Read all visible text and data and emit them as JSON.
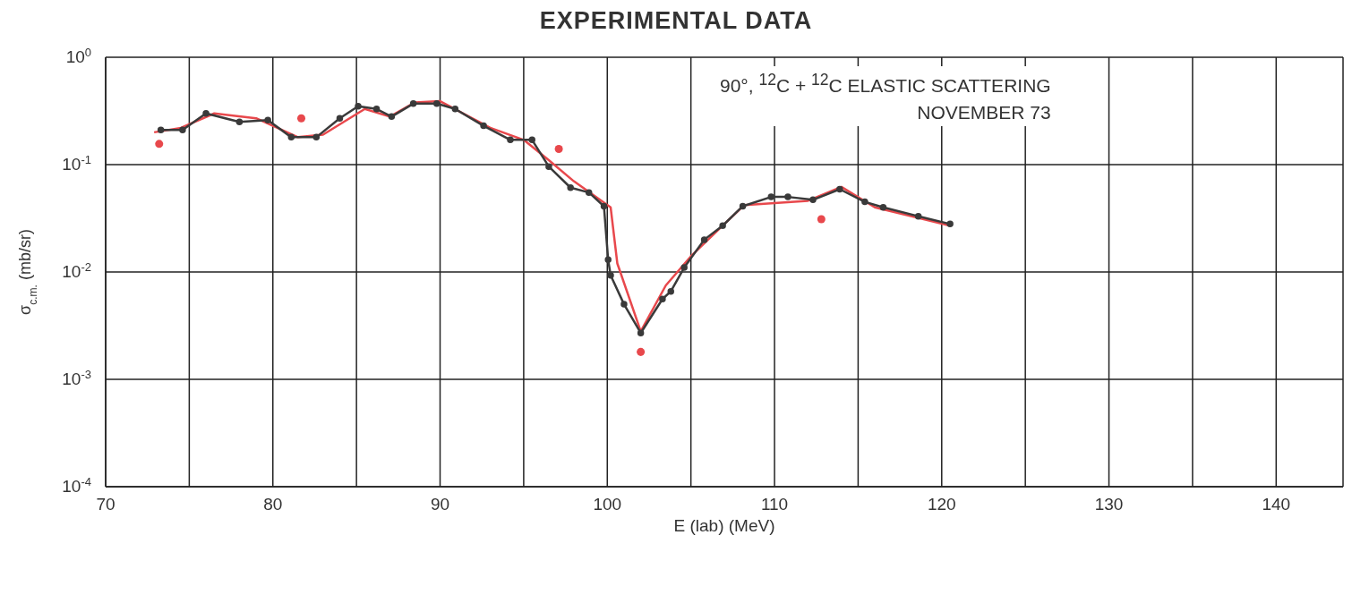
{
  "chart_data": {
    "type": "line",
    "title": "EXPERIMENTAL DATA",
    "xlabel": "E (lab) (MeV)",
    "ylabel": "σ$_{c.m.}$ (mb/sr)",
    "annotations": [
      "90°, $^{12}$C + $^{12}$C ELASTIC SCATTERING",
      "NOVEMBER 73"
    ],
    "log": "y",
    "grid": true,
    "xlim": [
      70,
      144
    ],
    "xticks": [
      70,
      {
        "value": 75,
        "label": null
      },
      80,
      {
        "value": 85,
        "label": null
      },
      90,
      {
        "value": 95,
        "label": null
      },
      100,
      {
        "value": 105,
        "label": null
      },
      110,
      {
        "value": 115,
        "label": null
      },
      120,
      {
        "value": 125,
        "label": null
      },
      130,
      {
        "value": 135,
        "label": null
      },
      140
    ],
    "ylim": [
      0.0001,
      1
    ],
    "yticks": [
      {
        "value": 0.0001,
        "label": "10$^{-4}$"
      },
      {
        "value": 0.001,
        "label": "10$^{-3}$"
      },
      {
        "value": 0.01,
        "label": "10$^{-2}$"
      },
      {
        "value": 0.1,
        "label": "10$^{-1}$"
      },
      {
        "value": 1,
        "label": "10$^{0}$"
      }
    ],
    "series": [
      {
        "color": "#e8484c",
        "marker": "none",
        "x": [
          72.9,
          74.5,
          76.5,
          79,
          81.5,
          83,
          85.5,
          87,
          88.5,
          90,
          93,
          95,
          96.5,
          98,
          100.2,
          100.6,
          102,
          103.5,
          105,
          107,
          108.2,
          112,
          114,
          116,
          120.5
        ],
        "values": [
          0.2,
          0.22,
          0.3,
          0.27,
          0.18,
          0.19,
          0.33,
          0.28,
          0.38,
          0.39,
          0.22,
          0.17,
          0.11,
          0.07,
          0.04,
          0.012,
          0.0028,
          0.0075,
          0.014,
          0.028,
          0.042,
          0.046,
          0.062,
          0.04,
          0.027
        ]
      },
      {
        "color": "#3a3a3a",
        "marker": "circle",
        "x": [
          73.3,
          74.6,
          76,
          78,
          79.7,
          81.1,
          82.6,
          84,
          85.1,
          86.2,
          87.1,
          88.4,
          89.8,
          90.9,
          92.6,
          94.2,
          95.5,
          96.5,
          97.8,
          98.9,
          99.8,
          100.05,
          100.2,
          101,
          102,
          103.3,
          103.8,
          104.6,
          105.8,
          106.9,
          108.1,
          109.8,
          110.8,
          112.3,
          113.9,
          115.4,
          116.5,
          118.6,
          120.5
        ],
        "values": [
          0.21,
          0.21,
          0.3,
          0.25,
          0.26,
          0.18,
          0.18,
          0.27,
          0.35,
          0.33,
          0.28,
          0.37,
          0.37,
          0.33,
          0.23,
          0.17,
          0.17,
          0.096,
          0.061,
          0.055,
          0.041,
          0.013,
          0.0093,
          0.005,
          0.0027,
          0.0056,
          0.0066,
          0.011,
          0.02,
          0.027,
          0.041,
          0.05,
          0.05,
          0.047,
          0.059,
          0.045,
          0.04,
          0.033,
          0.028
        ]
      },
      {
        "type": "scatter",
        "color": "#e8484c",
        "marker": "circle",
        "x": [
          73.2,
          81.7,
          97.1,
          102,
          112.8
        ],
        "values": [
          0.156,
          0.27,
          0.14,
          0.0018,
          0.031
        ]
      }
    ]
  }
}
